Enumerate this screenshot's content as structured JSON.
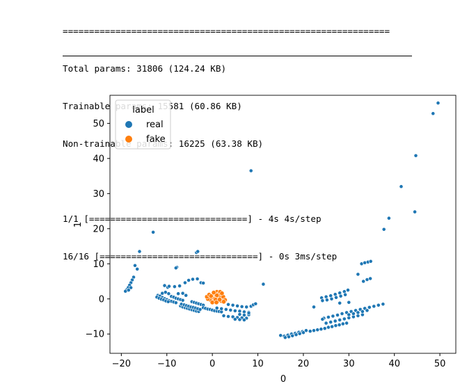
{
  "console": {
    "equals_rule": "==============================================================",
    "lines": [
      "Total params: 31806 (124.24 KB)",
      "Trainable params: 15581 (60.86 KB)",
      "Non-trainable params: 16225 (63.38 KB)"
    ],
    "progress": [
      "1/1 [==============================] - 4s 4s/step",
      "16/16 [==============================] - 0s 3ms/step"
    ]
  },
  "colors": {
    "real": "#1f77b4",
    "fake": "#ff7f0e"
  },
  "chart_data": {
    "type": "scatter",
    "xlabel": "0",
    "ylabel": "1",
    "xlim": [
      -22.5,
      53.5
    ],
    "ylim": [
      -15.5,
      58
    ],
    "xticks": [
      -20,
      -10,
      0,
      10,
      20,
      30,
      40,
      50
    ],
    "yticks": [
      -10,
      0,
      10,
      20,
      30,
      40,
      50
    ],
    "grid": false,
    "legend": {
      "title": "label",
      "placement": "top-left",
      "entries": [
        "real",
        "fake"
      ]
    },
    "series": [
      {
        "name": "real",
        "points": [
          [
            49.6,
            55.8
          ],
          [
            48.5,
            52.8
          ],
          [
            44.7,
            40.8
          ],
          [
            41.5,
            32.0
          ],
          [
            44.5,
            24.8
          ],
          [
            38.8,
            23.0
          ],
          [
            37.7,
            19.8
          ],
          [
            8.5,
            36.5
          ],
          [
            -13.0,
            19.0
          ],
          [
            -16.0,
            13.5
          ],
          [
            -3.5,
            13.2
          ],
          [
            -3.2,
            13.5
          ],
          [
            -17.0,
            9.5
          ],
          [
            -16.5,
            8.5
          ],
          [
            -7.8,
            9.0
          ],
          [
            -8.0,
            8.8
          ],
          [
            -17.3,
            6.2
          ],
          [
            -17.6,
            5.4
          ],
          [
            -17.9,
            4.6
          ],
          [
            -18.2,
            3.9
          ],
          [
            -18.5,
            3.2
          ],
          [
            -18.8,
            2.6
          ],
          [
            -19.1,
            2.2
          ],
          [
            -17.9,
            3.2
          ],
          [
            -18.4,
            2.5
          ],
          [
            -10.5,
            3.8
          ],
          [
            -9.8,
            3.3
          ],
          [
            -9.5,
            3.6
          ],
          [
            -8.3,
            3.5
          ],
          [
            -7.2,
            3.7
          ],
          [
            -6.0,
            4.6
          ],
          [
            -5.2,
            5.3
          ],
          [
            -4.3,
            5.6
          ],
          [
            -3.3,
            5.7
          ],
          [
            -2.5,
            4.6
          ],
          [
            -2.0,
            4.5
          ],
          [
            -12.0,
            1.0
          ],
          [
            -11.5,
            0.8
          ],
          [
            -11.0,
            0.4
          ],
          [
            -10.5,
            0.1
          ],
          [
            -10.0,
            -0.2
          ],
          [
            -9.5,
            -0.5
          ],
          [
            -9.0,
            -0.7
          ],
          [
            -8.5,
            -0.9
          ],
          [
            -8.0,
            -1.1
          ],
          [
            -12.2,
            0.5
          ],
          [
            -11.7,
            0.2
          ],
          [
            -11.2,
            -0.1
          ],
          [
            -10.7,
            -0.3
          ],
          [
            -10.2,
            -0.6
          ],
          [
            -9.7,
            -0.8
          ],
          [
            -9.0,
            0.7
          ],
          [
            -8.5,
            0.5
          ],
          [
            -8.0,
            0.2
          ],
          [
            -7.5,
            0.0
          ],
          [
            -7.0,
            -0.2
          ],
          [
            -6.5,
            -0.4
          ],
          [
            -11.0,
            1.6
          ],
          [
            -10.3,
            1.9
          ],
          [
            -9.6,
            1.5
          ],
          [
            -7.5,
            1.5
          ],
          [
            -6.5,
            1.6
          ],
          [
            -5.8,
            1.0
          ],
          [
            -7.0,
            -2.0
          ],
          [
            -6.5,
            -2.3
          ],
          [
            -6.0,
            -2.5
          ],
          [
            -5.5,
            -2.7
          ],
          [
            -5.0,
            -2.9
          ],
          [
            -4.5,
            -3.1
          ],
          [
            -4.0,
            -3.3
          ],
          [
            -3.5,
            -3.5
          ],
          [
            -3.0,
            -3.6
          ],
          [
            -6.8,
            -1.5
          ],
          [
            -6.2,
            -1.7
          ],
          [
            -5.7,
            -1.9
          ],
          [
            -5.2,
            -2.1
          ],
          [
            -4.7,
            -2.3
          ],
          [
            -4.2,
            -2.4
          ],
          [
            -3.7,
            -2.6
          ],
          [
            -3.2,
            -2.8
          ],
          [
            -2.7,
            -3.0
          ],
          [
            -4.5,
            -0.8
          ],
          [
            -4.0,
            -1.0
          ],
          [
            -3.5,
            -1.2
          ],
          [
            -3.0,
            -1.4
          ],
          [
            -2.5,
            -1.6
          ],
          [
            -2.0,
            -1.8
          ],
          [
            -2.0,
            -2.5
          ],
          [
            -1.5,
            -2.7
          ],
          [
            -1.0,
            -2.9
          ],
          [
            -0.5,
            -3.0
          ],
          [
            0.0,
            -3.2
          ],
          [
            0.5,
            -3.4
          ],
          [
            1.0,
            -3.5
          ],
          [
            1.5,
            -3.6
          ],
          [
            2.0,
            -3.7
          ],
          [
            1.0,
            -2.6
          ],
          [
            2.0,
            -2.8
          ],
          [
            3.0,
            -3.0
          ],
          [
            4.0,
            -3.2
          ],
          [
            5.0,
            -3.4
          ],
          [
            6.0,
            -3.5
          ],
          [
            7.0,
            -3.7
          ],
          [
            8.0,
            -3.8
          ],
          [
            3.5,
            -1.6
          ],
          [
            4.5,
            -1.8
          ],
          [
            5.5,
            -2.0
          ],
          [
            6.5,
            -2.2
          ],
          [
            7.5,
            -2.3
          ],
          [
            8.5,
            -2.1
          ],
          [
            9.0,
            -1.7
          ],
          [
            9.5,
            -1.4
          ],
          [
            2.5,
            -4.8
          ],
          [
            3.5,
            -5.0
          ],
          [
            4.5,
            -5.1
          ],
          [
            5.5,
            -5.3
          ],
          [
            6.5,
            -5.4
          ],
          [
            7.5,
            -5.5
          ],
          [
            6.0,
            -4.4
          ],
          [
            7.0,
            -4.6
          ],
          [
            8.0,
            -4.5
          ],
          [
            5.0,
            -5.8
          ],
          [
            6.0,
            -5.9
          ],
          [
            7.0,
            -6.0
          ],
          [
            8.0,
            -4.0
          ],
          [
            11.2,
            4.2
          ],
          [
            15.0,
            -10.4
          ],
          [
            15.8,
            -10.6
          ],
          [
            16.6,
            -10.3
          ],
          [
            17.4,
            -10.0
          ],
          [
            18.2,
            -9.8
          ],
          [
            19.0,
            -9.5
          ],
          [
            19.8,
            -9.3
          ],
          [
            20.6,
            -9.0
          ],
          [
            16.0,
            -11.0
          ],
          [
            16.8,
            -10.8
          ],
          [
            17.6,
            -10.5
          ],
          [
            18.4,
            -10.2
          ],
          [
            19.2,
            -9.9
          ],
          [
            20.0,
            -9.6
          ],
          [
            21.5,
            -9.2
          ],
          [
            22.3,
            -9.0
          ],
          [
            23.1,
            -8.8
          ],
          [
            23.9,
            -8.6
          ],
          [
            24.7,
            -8.4
          ],
          [
            25.5,
            -8.1
          ],
          [
            26.3,
            -7.9
          ],
          [
            27.1,
            -7.6
          ],
          [
            27.9,
            -7.4
          ],
          [
            28.7,
            -7.1
          ],
          [
            29.5,
            -6.9
          ],
          [
            25.0,
            -6.9
          ],
          [
            26.0,
            -6.6
          ],
          [
            27.0,
            -6.3
          ],
          [
            28.0,
            -6.0
          ],
          [
            29.0,
            -5.7
          ],
          [
            30.0,
            -5.4
          ],
          [
            31.0,
            -5.1
          ],
          [
            32.0,
            -4.8
          ],
          [
            33.0,
            -4.5
          ],
          [
            24.5,
            -5.5
          ],
          [
            25.5,
            -5.2
          ],
          [
            26.5,
            -4.9
          ],
          [
            27.5,
            -4.6
          ],
          [
            28.5,
            -4.2
          ],
          [
            29.5,
            -3.9
          ],
          [
            30.5,
            -3.6
          ],
          [
            31.5,
            -3.3
          ],
          [
            32.5,
            -3.0
          ],
          [
            33.5,
            -2.7
          ],
          [
            34.5,
            -2.4
          ],
          [
            35.5,
            -2.1
          ],
          [
            36.5,
            -1.8
          ],
          [
            37.5,
            -1.5
          ],
          [
            30.0,
            -4.5
          ],
          [
            31.0,
            -4.2
          ],
          [
            32.0,
            -3.9
          ],
          [
            33.0,
            -3.6
          ],
          [
            34.0,
            -3.3
          ],
          [
            24.0,
            0.3
          ],
          [
            25.0,
            0.6
          ],
          [
            26.0,
            0.9
          ],
          [
            27.0,
            1.3
          ],
          [
            28.0,
            1.7
          ],
          [
            29.0,
            2.1
          ],
          [
            29.8,
            2.5
          ],
          [
            24.2,
            -0.5
          ],
          [
            25.2,
            -0.3
          ],
          [
            26.2,
            0.0
          ],
          [
            27.2,
            0.4
          ],
          [
            28.2,
            0.8
          ],
          [
            29.2,
            1.2
          ],
          [
            22.3,
            -2.3
          ],
          [
            24.2,
            -5.8
          ],
          [
            30.0,
            -1.0
          ],
          [
            28.0,
            -1.2
          ],
          [
            32.0,
            7.0
          ],
          [
            32.8,
            10.0
          ],
          [
            33.5,
            10.3
          ],
          [
            34.2,
            10.5
          ],
          [
            34.8,
            10.7
          ],
          [
            33.2,
            5.0
          ],
          [
            34.0,
            5.5
          ],
          [
            34.7,
            5.8
          ]
        ]
      },
      {
        "name": "fake",
        "points": [
          [
            -0.5,
            0.5
          ],
          [
            0.0,
            1.0
          ],
          [
            0.5,
            1.5
          ],
          [
            1.0,
            2.0
          ],
          [
            1.5,
            1.5
          ],
          [
            2.0,
            1.0
          ],
          [
            1.5,
            0.5
          ],
          [
            1.0,
            0.0
          ],
          [
            0.5,
            -0.5
          ],
          [
            0.0,
            -0.5
          ],
          [
            -0.5,
            -0.2
          ],
          [
            0.2,
            0.3
          ],
          [
            0.8,
            0.8
          ],
          [
            1.3,
            1.2
          ],
          [
            1.8,
            0.3
          ],
          [
            2.3,
            -0.2
          ],
          [
            2.0,
            -0.6
          ],
          [
            1.2,
            -0.6
          ],
          [
            0.5,
            0.0
          ],
          [
            -1.0,
            0.0
          ],
          [
            -1.2,
            0.6
          ],
          [
            -0.7,
            1.2
          ],
          [
            0.3,
            1.8
          ],
          [
            1.7,
            2.0
          ],
          [
            2.4,
            0.6
          ],
          [
            2.8,
            -0.3
          ],
          [
            2.5,
            -0.8
          ],
          [
            0.0,
            -1.0
          ],
          [
            1.0,
            1.0
          ],
          [
            0.7,
            -0.2
          ],
          [
            1.6,
            -0.2
          ],
          [
            -0.3,
            0.8
          ],
          [
            2.1,
            1.6
          ],
          [
            0.9,
            -1.0
          ]
        ]
      }
    ]
  }
}
